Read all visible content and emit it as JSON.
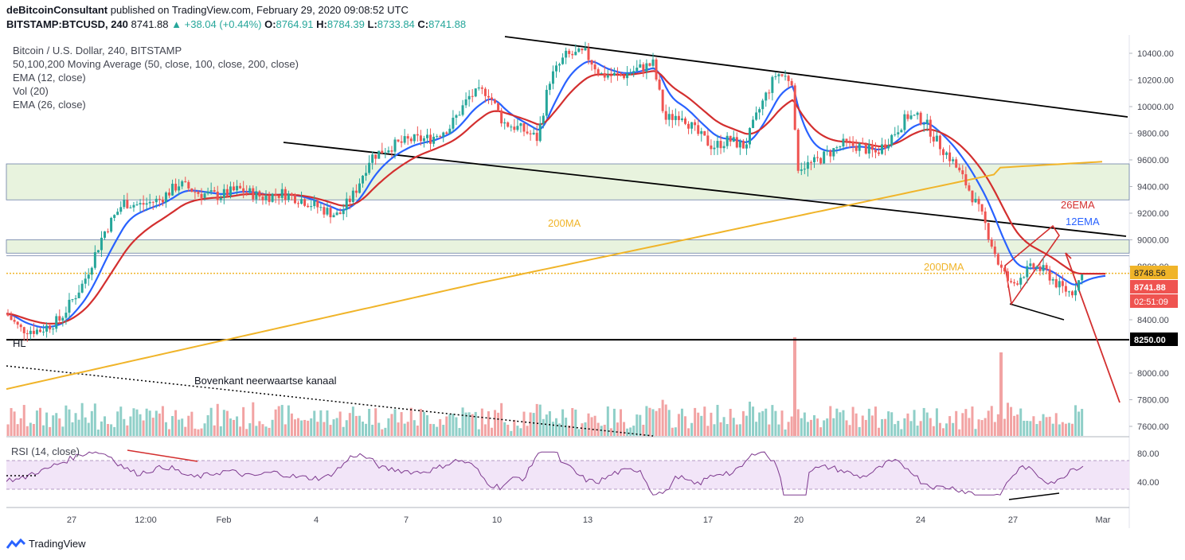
{
  "header": {
    "author": "deBitcoinConsultant",
    "published": "published on TradingView.com, February 29, 2020 09:08:52 UTC",
    "symbol": "BITSTAMP:BTCUSD, 240",
    "last": "8741.88",
    "change": "▲ +38.04 (+0.44%)",
    "o_label": "O:",
    "o": "8764.91",
    "h_label": "H:",
    "h": "8784.39",
    "l_label": "L:",
    "l": "8733.84",
    "c_label": "C:",
    "c": "8741.88"
  },
  "legend": [
    "Bitcoin / U.S. Dollar, 240, BITSTAMP",
    "50,100,200 Moving Average (50, close, 100, close, 200, close)",
    "EMA (12, close)",
    "Vol (20)",
    "EMA (26, close)"
  ],
  "annotations": {
    "ema26": "26EMA",
    "ema12": "12EMA",
    "ma200": "200MA",
    "dma200": "200DMA",
    "hl": "HL",
    "channel": "Bovenkant neerwaartse kanaal",
    "rsi_label": "RSI (14, close)"
  },
  "price_tags": {
    "dma": "8748.56",
    "last": "8741.88",
    "countdown": "02:51:09",
    "support": "8250.00"
  },
  "brand": "TradingView",
  "colors": {
    "up": "#26a69a",
    "down": "#ef5350",
    "ema12": "#2962ff",
    "ema26": "#d32f2f",
    "ma200": "#f0b429",
    "zone": "#e8f3de",
    "rsi": "#7e3a8f",
    "rsi_band": "#f2e5f8",
    "vol_up": "#8fcfc8",
    "vol_down": "#f2a3a3"
  },
  "chart_data": {
    "type": "candlestick",
    "symbol": "BITSTAMP:BTCUSD",
    "interval": "240",
    "y_ticks": [
      10400,
      10200,
      10000,
      9800,
      9600,
      9400,
      9200,
      9000,
      8800,
      8400,
      8000,
      7800,
      7600
    ],
    "x_ticks": [
      "27",
      "12:00",
      "Feb",
      "4",
      "7",
      "10",
      "13",
      "17",
      "20",
      "24",
      "27",
      "Mar"
    ],
    "rsi_ticks": [
      80,
      40
    ],
    "rsi_band": [
      30,
      70
    ],
    "support_level": 8250,
    "dma_level": 8748.56,
    "last_price": 8741.88,
    "ohlc_last": {
      "o": 8764.91,
      "h": 8784.39,
      "l": 8733.84,
      "c": 8741.88
    },
    "zones": [
      [
        9300,
        9570
      ],
      [
        8900,
        9000
      ]
    ],
    "price_path": [
      [
        0,
        8500
      ],
      [
        25,
        8330
      ],
      [
        50,
        8320
      ],
      [
        75,
        8400
      ],
      [
        105,
        8680
      ],
      [
        130,
        9050
      ],
      [
        155,
        9280
      ],
      [
        175,
        9260
      ],
      [
        200,
        9300
      ],
      [
        225,
        9420
      ],
      [
        250,
        9350
      ],
      [
        275,
        9330
      ],
      [
        300,
        9380
      ],
      [
        330,
        9320
      ],
      [
        355,
        9350
      ],
      [
        380,
        9300
      ],
      [
        405,
        9230
      ],
      [
        425,
        9180
      ],
      [
        445,
        9350
      ],
      [
        465,
        9620
      ],
      [
        490,
        9700
      ],
      [
        515,
        9750
      ],
      [
        540,
        9760
      ],
      [
        565,
        9850
      ],
      [
        590,
        10080
      ],
      [
        612,
        10120
      ],
      [
        632,
        9880
      ],
      [
        655,
        9830
      ],
      [
        675,
        9760
      ],
      [
        690,
        10200
      ],
      [
        710,
        10380
      ],
      [
        735,
        10400
      ],
      [
        755,
        10240
      ],
      [
        780,
        10230
      ],
      [
        800,
        10280
      ],
      [
        820,
        10320
      ],
      [
        835,
        9900
      ],
      [
        855,
        9950
      ],
      [
        875,
        9800
      ],
      [
        895,
        9700
      ],
      [
        915,
        9750
      ],
      [
        935,
        9700
      ],
      [
        955,
        10000
      ],
      [
        975,
        10250
      ],
      [
        995,
        10200
      ],
      [
        1000,
        9550
      ],
      [
        1020,
        9570
      ],
      [
        1040,
        9650
      ],
      [
        1060,
        9720
      ],
      [
        1080,
        9700
      ],
      [
        1100,
        9650
      ],
      [
        1120,
        9780
      ],
      [
        1140,
        9930
      ],
      [
        1160,
        9900
      ],
      [
        1175,
        9750
      ],
      [
        1195,
        9600
      ],
      [
        1215,
        9400
      ],
      [
        1235,
        9150
      ],
      [
        1255,
        8800
      ],
      [
        1270,
        8650
      ],
      [
        1285,
        8750
      ],
      [
        1300,
        8800
      ],
      [
        1315,
        8750
      ],
      [
        1330,
        8650
      ],
      [
        1345,
        8600
      ],
      [
        1360,
        8745
      ]
    ]
  }
}
